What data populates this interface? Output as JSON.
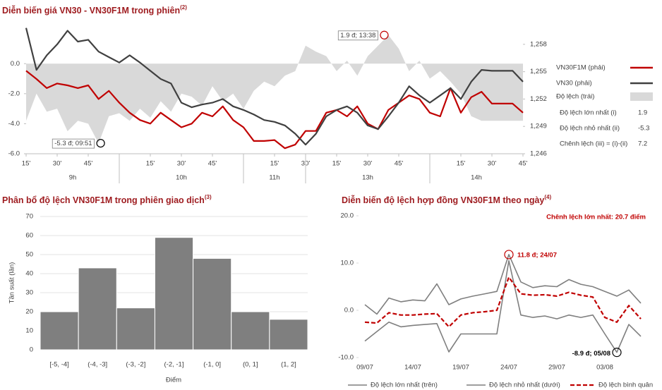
{
  "chart_data": [
    {
      "type": "line_area",
      "title": "Diễn biến giá VN30 - VN30F1M trong phiên",
      "title_note": "(2)",
      "x": [
        0,
        5,
        10,
        15,
        20,
        25,
        30,
        35,
        40,
        45,
        50,
        55,
        60,
        65,
        70,
        75,
        80,
        85,
        90,
        95,
        100,
        105,
        110,
        115,
        120,
        125,
        130,
        135,
        140,
        145,
        150,
        155,
        160,
        165,
        170,
        175,
        180,
        185,
        190,
        195,
        200,
        205,
        210,
        215,
        220,
        225,
        230,
        235,
        240
      ],
      "xlim": [
        0,
        240
      ],
      "xticks": [
        {
          "value": 0,
          "label": "15'"
        },
        {
          "value": 15,
          "label": "30'"
        },
        {
          "value": 30,
          "label": "45'"
        },
        {
          "value": 60,
          "label": "15'"
        },
        {
          "value": 75,
          "label": "30'"
        },
        {
          "value": 90,
          "label": "45'"
        },
        {
          "value": 120,
          "label": "15'"
        },
        {
          "value": 135,
          "label": "30'"
        },
        {
          "value": 150,
          "label": "15'"
        },
        {
          "value": 165,
          "label": "30'"
        },
        {
          "value": 180,
          "label": "45'"
        },
        {
          "value": 210,
          "label": "15'"
        },
        {
          "value": 225,
          "label": "30'"
        },
        {
          "value": 240,
          "label": "45'"
        }
      ],
      "x_groups": [
        {
          "label": "9h",
          "start": 0,
          "end": 45
        },
        {
          "label": "10h",
          "start": 45,
          "end": 105
        },
        {
          "label": "11h",
          "start": 105,
          "end": 135
        },
        {
          "label": "13h",
          "start": 135,
          "end": 195
        },
        {
          "label": "14h",
          "start": 195,
          "end": 240
        }
      ],
      "ylim": [
        -6,
        2.5
      ],
      "yticks": [
        {
          "value": 0,
          "label": "0.0"
        },
        {
          "value": -2,
          "label": "-2.0"
        },
        {
          "value": -4,
          "label": "-4.0"
        },
        {
          "value": -6,
          "label": "-6.0"
        }
      ],
      "y2lim": [
        1246,
        1260
      ],
      "y2ticks": [
        {
          "value": 1246,
          "label": "1,246"
        },
        {
          "value": 1249,
          "label": "1,249"
        },
        {
          "value": 1252,
          "label": "1,252"
        },
        {
          "value": 1255,
          "label": "1,255"
        },
        {
          "value": 1258,
          "label": "1,258"
        }
      ],
      "series": [
        {
          "name": "VN30F1M (phải)",
          "color": "#c00000",
          "axis": "y2",
          "values": [
            1255.1,
            1254.2,
            1253.2,
            1253.7,
            1253.5,
            1253.2,
            1253.5,
            1252.0,
            1252.9,
            1251.6,
            1250.5,
            1249.7,
            1249.3,
            1250.5,
            1249.7,
            1248.9,
            1249.3,
            1250.5,
            1250.1,
            1251.2,
            1249.7,
            1248.9,
            1247.4,
            1247.4,
            1247.5,
            1246.6,
            1247.0,
            1248.5,
            1248.5,
            1250.5,
            1250.8,
            1250.1,
            1251.2,
            1249.3,
            1248.7,
            1250.8,
            1251.6,
            1252.4,
            1252.0,
            1250.5,
            1250.1,
            1253.2,
            1250.5,
            1252.2,
            1252.8,
            1251.5,
            1251.5,
            1251.5,
            1250.5
          ]
        },
        {
          "name": "VN30 (phải)",
          "color": "#404040",
          "axis": "y2",
          "values": [
            1259.8,
            1255.2,
            1256.8,
            1258.0,
            1259.5,
            1258.3,
            1258.5,
            1257.2,
            1256.6,
            1256.0,
            1256.8,
            1256.0,
            1255.1,
            1254.2,
            1253.7,
            1251.6,
            1251.1,
            1251.4,
            1251.6,
            1252.0,
            1251.2,
            1250.8,
            1250.3,
            1249.7,
            1249.5,
            1249.1,
            1248.2,
            1247.0,
            1248.2,
            1250.1,
            1250.8,
            1251.2,
            1250.5,
            1249.1,
            1248.7,
            1250.1,
            1251.6,
            1253.4,
            1252.4,
            1251.6,
            1252.4,
            1253.2,
            1252.0,
            1253.9,
            1255.2,
            1255.1,
            1255.1,
            1255.1,
            1253.9
          ]
        },
        {
          "name": "Độ lệch (trái)",
          "color": "#d9d9d9",
          "axis": "y",
          "kind": "area",
          "values": [
            -3.8,
            -2.0,
            -3.2,
            -3.0,
            -4.5,
            -3.8,
            -4.0,
            -5.3,
            -3.5,
            -3.3,
            -3.8,
            -3.0,
            -3.6,
            -2.5,
            -3.2,
            -2.0,
            -2.2,
            -2.8,
            -1.5,
            -2.5,
            -2.0,
            -3.0,
            -1.8,
            -1.2,
            -1.5,
            -0.8,
            -0.5,
            1.2,
            0.8,
            0.5,
            -0.5,
            0.2,
            -0.8,
            0.5,
            1.2,
            1.9,
            1.0,
            -0.5,
            0.2,
            -1.0,
            -0.5,
            -1.2,
            -2.0,
            -3.5,
            -3.8,
            -3.8,
            -3.8,
            -3.8,
            -3.8
          ]
        }
      ],
      "annotations": [
        {
          "text": "-5.3 đ; 09:51",
          "x": 36,
          "y": -5.3,
          "color": "#000000"
        },
        {
          "text": "1.9 đ; 13:38",
          "x": 173,
          "y": 1.9,
          "color": "#c00000"
        }
      ],
      "stats": [
        {
          "label": "Độ lệch lớn nhất (i)",
          "value": 1.9
        },
        {
          "label": "Độ lệch nhỏ nhất (ii)",
          "value": -5.3
        },
        {
          "label": "Chênh lệch (iii) = (i)-(ii)",
          "value": 7.2
        }
      ]
    },
    {
      "type": "bar",
      "title": "Phân bổ độ lệch VN30F1M trong phiên giao dịch",
      "title_note": "(3)",
      "categories": [
        "[-5, -4]",
        "(-4, -3]",
        "(-3, -2]",
        "(-2, -1]",
        "(-1, 0]",
        "(0, 1]",
        "(1, 2]"
      ],
      "values": [
        20,
        43,
        22,
        59,
        48,
        20,
        16
      ],
      "color": "#7f7f7f",
      "ylim": [
        0,
        70
      ],
      "yticks": [
        0,
        10,
        20,
        30,
        40,
        50,
        60,
        70
      ],
      "grid": true,
      "ylabel": "Tần suất (lần)",
      "xlabel": "Điểm"
    },
    {
      "type": "line",
      "title": "Diễn biến độ lệch hợp đồng VN30F1M theo ngày",
      "title_note": "(4)",
      "note": "Chênh lệch lớn nhất: 20.7 điểm",
      "categories": [
        "09/07",
        null,
        null,
        null,
        "14/07",
        null,
        null,
        null,
        "19/07",
        null,
        null,
        null,
        "24/07",
        null,
        null,
        null,
        "29/07",
        null,
        null,
        null,
        "03/08",
        null,
        null,
        null
      ],
      "ylim": [
        -10,
        20
      ],
      "yticks": [
        {
          "value": 20,
          "label": "20.0"
        },
        {
          "value": 10,
          "label": "10.0"
        },
        {
          "value": 0,
          "label": "0.0"
        },
        {
          "value": -10,
          "label": "-10.0"
        }
      ],
      "series": [
        {
          "name": "Độ lệch lớn nhất (trên)",
          "color": "#7f7f7f",
          "values": [
            1.2,
            -0.8,
            2.6,
            1.8,
            2.2,
            2.0,
            5.6,
            1.2,
            2.4,
            3.0,
            3.5,
            4.0,
            11.8,
            6.0,
            4.8,
            5.2,
            5.0,
            6.5,
            5.5,
            5.0,
            4.0,
            3.0,
            4.3,
            1.5
          ]
        },
        {
          "name": "Độ lệch nhỏ nhất (dưới)",
          "color": "#7f7f7f",
          "values": [
            -6.5,
            -4.5,
            -2.5,
            -3.5,
            -3.2,
            -3.0,
            -2.8,
            -8.8,
            -5.0,
            -5.0,
            -5.0,
            -5.0,
            10.5,
            -1.0,
            -1.5,
            -1.2,
            -1.8,
            -1.0,
            -1.5,
            -1.0,
            -5.0,
            -8.9,
            -3.0,
            -5.5
          ]
        },
        {
          "name": "Độ lệch bình quân",
          "color": "#c00000",
          "dashed": true,
          "values": [
            -2.5,
            -2.7,
            -0.5,
            -1.0,
            -1.0,
            -0.8,
            -0.7,
            -3.5,
            -1.0,
            -0.5,
            -0.3,
            0.0,
            7.0,
            3.5,
            3.2,
            3.3,
            3.0,
            3.8,
            3.2,
            2.8,
            -1.5,
            -2.5,
            1.0,
            -1.8
          ]
        }
      ],
      "annotations": [
        {
          "text": "11.8 đ; 24/07",
          "index": 12,
          "y": 11.8,
          "color": "#c00000"
        },
        {
          "text": "-8.9 đ; 05/08",
          "index": 21,
          "y": -8.9,
          "color": "#000000"
        }
      ]
    }
  ]
}
